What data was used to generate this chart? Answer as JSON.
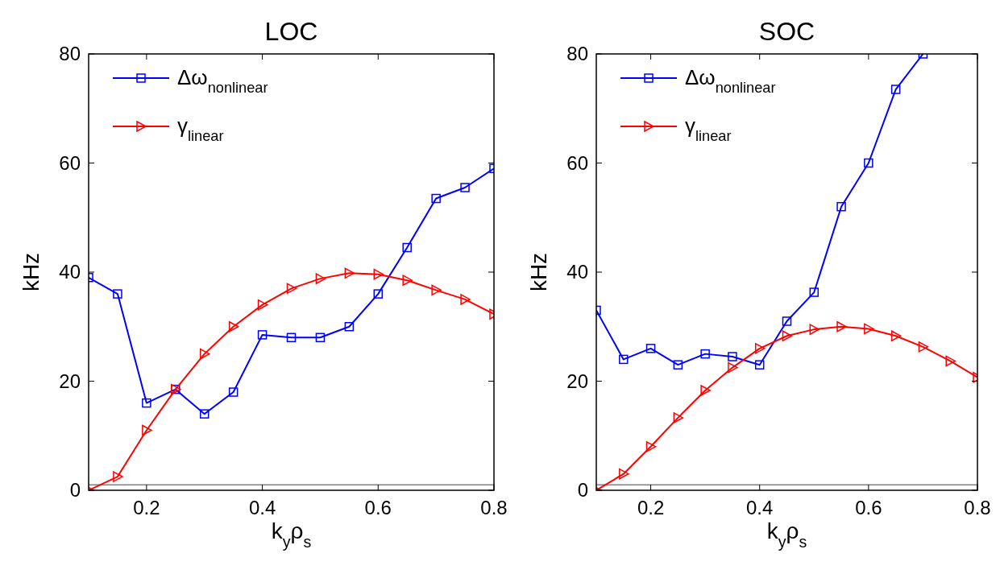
{
  "chart_data": [
    {
      "type": "line",
      "title": "LOC",
      "xlabel": "k$_{y}$ρ$_{s}$",
      "ylabel": "kHz",
      "xlim": [
        0.1,
        0.8
      ],
      "ylim": [
        0,
        80
      ],
      "xticks": [
        0.2,
        0.4,
        0.6,
        0.8
      ],
      "yticks": [
        0,
        20,
        40,
        60,
        80
      ],
      "legend": "top left",
      "grid": false,
      "ref_lines": [
        {
          "axis": "y",
          "value": 1,
          "color": "#808080"
        }
      ],
      "x": [
        0.1,
        0.15,
        0.2,
        0.25,
        0.3,
        0.35,
        0.4,
        0.45,
        0.5,
        0.55,
        0.6,
        0.65,
        0.7,
        0.75,
        0.8
      ],
      "series": [
        {
          "name": "Δω$_{nonlinear}$",
          "color": "#0000ff",
          "marker": "square",
          "values": [
            39,
            36,
            16,
            18.5,
            14,
            18,
            28.5,
            28,
            28,
            30,
            36,
            44.5,
            53.5,
            55.5,
            59
          ]
        },
        {
          "name": "γ$_{linear}$",
          "color": "#ff0000",
          "marker": "triangle",
          "values": [
            0,
            2.5,
            11,
            18.5,
            25,
            30,
            34,
            37,
            38.8,
            39.8,
            39.6,
            38.5,
            36.7,
            35,
            32.3
          ]
        }
      ]
    },
    {
      "type": "line",
      "title": "SOC",
      "xlabel": "k$_{y}$ρ$_{s}$",
      "ylabel": "kHz",
      "xlim": [
        0.1,
        0.8
      ],
      "ylim": [
        0,
        80
      ],
      "xticks": [
        0.2,
        0.4,
        0.6,
        0.8
      ],
      "yticks": [
        0,
        20,
        40,
        60,
        80
      ],
      "legend": "top left",
      "grid": false,
      "ref_lines": [
        {
          "axis": "y",
          "value": 1,
          "color": "#808080"
        }
      ],
      "x": [
        0.1,
        0.15,
        0.2,
        0.25,
        0.3,
        0.35,
        0.4,
        0.45,
        0.5,
        0.55,
        0.6,
        0.65,
        0.7,
        0.75,
        0.8
      ],
      "series": [
        {
          "name": "Δω$_{nonlinear}$",
          "color": "#0000ff",
          "marker": "square",
          "values": [
            33,
            24,
            26,
            23,
            25,
            24.5,
            23,
            31,
            36.3,
            52,
            60,
            73.5,
            80,
            null,
            null
          ]
        },
        {
          "name": "γ$_{linear}$",
          "color": "#ff0000",
          "marker": "triangle",
          "values": [
            0,
            3,
            8,
            13.3,
            18.3,
            22.5,
            26,
            28.3,
            29.5,
            30,
            29.6,
            28.3,
            26.3,
            23.7,
            20.7
          ]
        }
      ]
    }
  ]
}
